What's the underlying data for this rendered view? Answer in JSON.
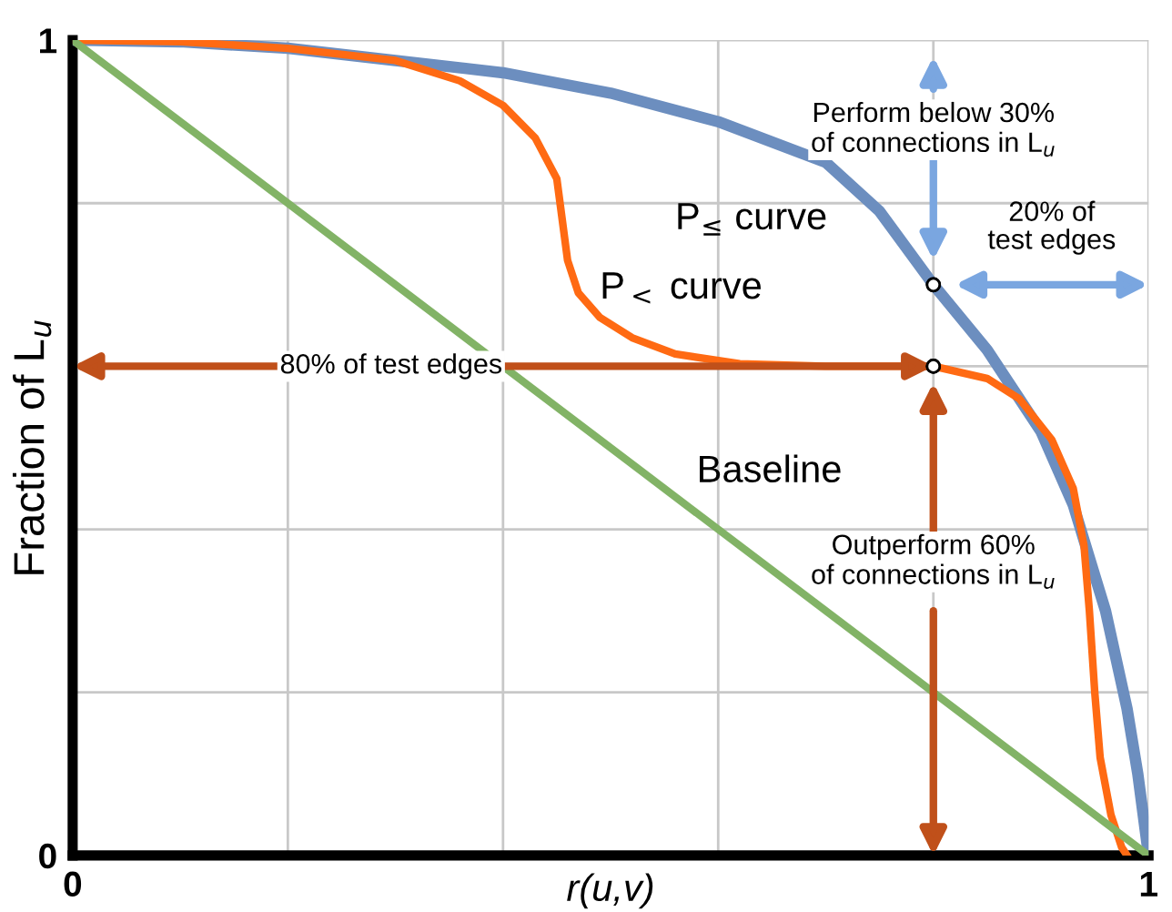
{
  "chart_data": {
    "type": "line",
    "xlabel": "r(u,v)",
    "ylabel": "Fraction of L$_{u}$",
    "xlim": [
      0,
      1
    ],
    "ylim": [
      0,
      1
    ],
    "xticks": [
      0,
      {
        "value": 0.2,
        "label": null
      },
      {
        "value": 0.4,
        "label": null
      },
      {
        "value": 0.6,
        "label": null
      },
      {
        "value": 0.8,
        "label": null
      },
      1
    ],
    "yticks": [
      0,
      {
        "value": 0.2,
        "label": null
      },
      {
        "value": 0.4,
        "label": null
      },
      {
        "value": 0.6,
        "label": null
      },
      {
        "value": 0.8,
        "label": null
      },
      1
    ],
    "grid": true,
    "legend": false,
    "marker": "none",
    "line_style": "solid",
    "series": [
      {
        "name": "P$_{≤}$ curve",
        "color": "#6c8ebf",
        "x": [
          0,
          0.1,
          0.2,
          0.3,
          0.4,
          0.5,
          0.6,
          0.7,
          0.75,
          0.8,
          0.85,
          0.9,
          0.93,
          0.96,
          0.98,
          0.99,
          1
        ],
        "values": [
          1,
          0.998,
          0.99,
          0.975,
          0.96,
          0.935,
          0.9,
          0.85,
          0.79,
          0.7,
          0.62,
          0.52,
          0.43,
          0.3,
          0.18,
          0.1,
          0
        ]
      },
      {
        "name": "P$_{<}$ curve",
        "color": "#ff6a13",
        "x": [
          0,
          0.1,
          0.2,
          0.3,
          0.36,
          0.4,
          0.43,
          0.45,
          0.455,
          0.46,
          0.47,
          0.49,
          0.52,
          0.56,
          0.62,
          0.7,
          0.8,
          0.85,
          0.88,
          0.91,
          0.93,
          0.94,
          0.945,
          0.95,
          0.955,
          0.965,
          0.975,
          0.98
        ],
        "values": [
          1,
          0.998,
          0.99,
          0.975,
          0.95,
          0.92,
          0.88,
          0.83,
          0.78,
          0.73,
          0.69,
          0.66,
          0.635,
          0.615,
          0.603,
          0.6,
          0.6,
          0.585,
          0.56,
          0.51,
          0.45,
          0.38,
          0.3,
          0.2,
          0.12,
          0.05,
          0.01,
          0
        ]
      },
      {
        "name": "Baseline",
        "color": "#82b366",
        "x": [
          0,
          1
        ],
        "values": [
          1,
          0
        ]
      }
    ],
    "annotations": [
      {
        "text": "80% of test edges",
        "x": 0.8,
        "y": 0.6
      },
      "20% of\ntest edges",
      "Perform below 30%\nof connections in L$_{u}$",
      "Outperform 60%\nof connections in L$_{u}$"
    ]
  }
}
